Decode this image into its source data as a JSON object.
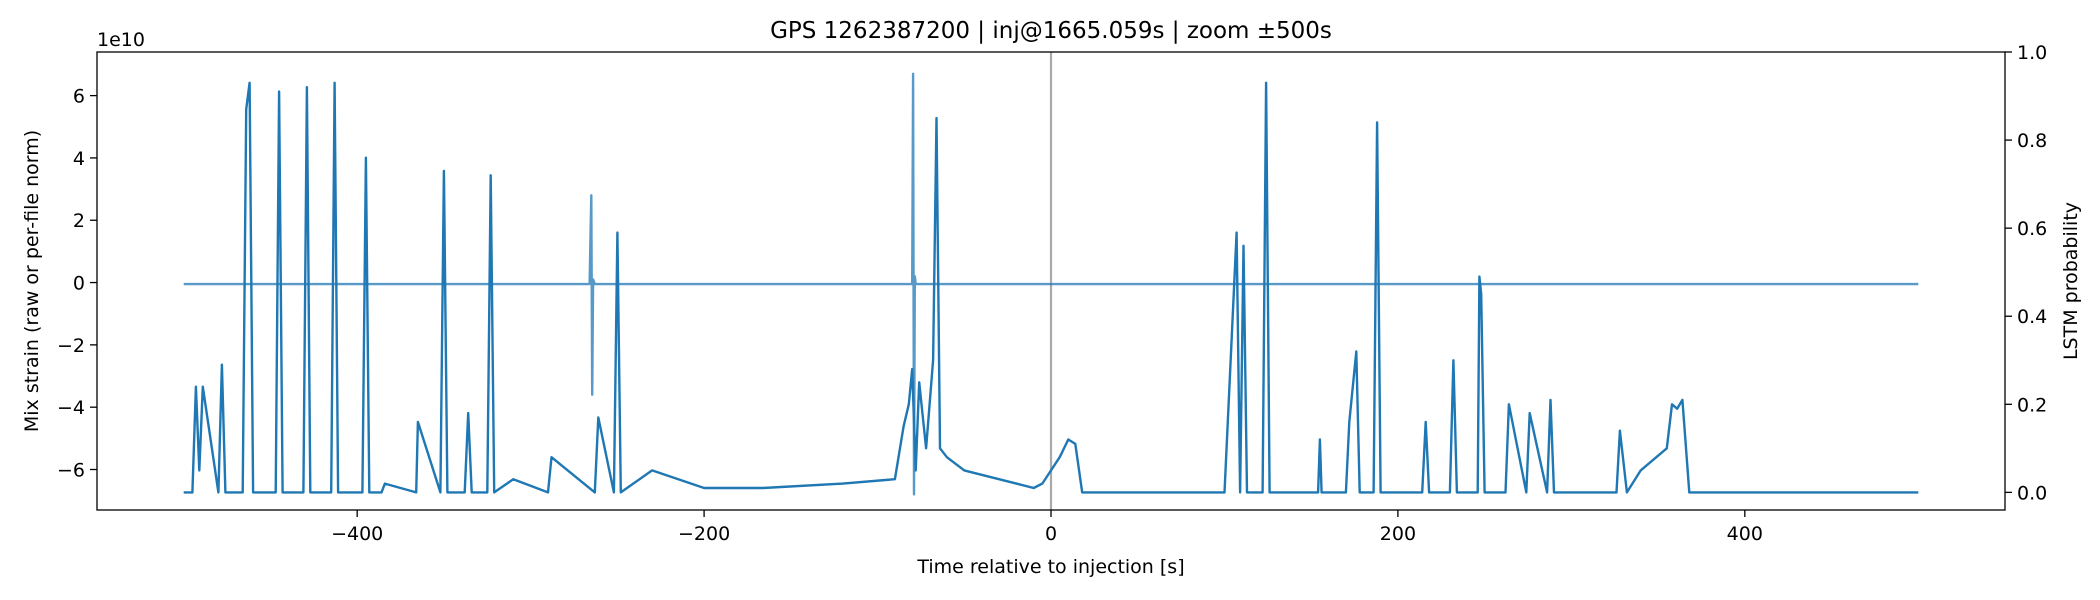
{
  "chart_data": {
    "type": "line",
    "title": "GPS 1262387200 | inj@1665.059s | zoom ±500s",
    "xlabel": "Time relative to injection [s]",
    "ylabel_left": "Mix strain (raw or per-file norm)",
    "ylabel_right": "LSTM probability",
    "y_offset_label": "1e10",
    "xlim": [
      -550,
      550
    ],
    "ylim_left": [
      -7.3,
      7.4
    ],
    "ylim_right": [
      -0.04,
      1.0
    ],
    "x_ticks": [
      -400,
      -200,
      0,
      200,
      400
    ],
    "x_tick_labels": [
      "−400",
      "−200",
      "0",
      "200",
      "400"
    ],
    "y_left_ticks": [
      -6,
      -4,
      -2,
      0,
      2,
      4,
      6
    ],
    "y_left_tick_labels": [
      "−6",
      "−4",
      "−2",
      "0",
      "2",
      "4",
      "6"
    ],
    "y_right_ticks": [
      0.0,
      0.2,
      0.4,
      0.6,
      0.8,
      1.0
    ],
    "y_right_tick_labels": [
      "0.0",
      "0.2",
      "0.4",
      "0.6",
      "0.8",
      "1.0"
    ],
    "injection_marker_x": 0,
    "colors": {
      "series": "#1f77b4",
      "marker": "#aaaaaa"
    },
    "series": [
      {
        "axis": "left",
        "x": [
          -500,
          -266,
          -265,
          -264.5,
          -264,
          -263,
          -80,
          -79.5,
          -79,
          -78.5,
          -78,
          500
        ],
        "y": [
          -0.05,
          -0.05,
          2.8,
          -3.6,
          0.1,
          -0.05,
          -0.05,
          6.7,
          -6.8,
          0.2,
          -0.05,
          -0.05
        ]
      },
      {
        "axis": "right",
        "x": [
          -500,
          -495,
          -493,
          -491,
          -489,
          -480,
          -478,
          -476,
          -466,
          -464,
          -462,
          -460,
          -447,
          -445,
          -443,
          -431,
          -429,
          -427,
          -415,
          -413,
          -411,
          -397,
          -395,
          -393,
          -386,
          -384,
          -366,
          -365,
          -352,
          -350,
          -348,
          -338,
          -336,
          -334,
          -325,
          -323,
          -321,
          -310,
          -290,
          -288,
          -263,
          -261,
          -252,
          -250,
          -248,
          -230,
          -200,
          -166,
          -120,
          -90,
          -85,
          -82,
          -80,
          -78,
          -76,
          -72,
          -68,
          -66,
          -64,
          -60,
          -50,
          -40,
          -30,
          -20,
          -10,
          -5,
          0,
          5,
          10,
          14,
          18,
          100,
          107,
          109,
          111,
          113,
          122,
          124,
          126,
          140,
          154,
          155,
          156,
          170,
          172,
          176,
          178,
          186,
          188,
          190,
          214,
          216,
          218,
          230,
          232,
          234,
          246,
          247,
          248,
          250,
          262,
          264,
          274,
          276,
          286,
          288,
          290,
          326,
          328,
          332,
          340,
          355,
          358,
          361,
          364,
          368,
          500
        ],
        "y": [
          0.0,
          0.0,
          0.24,
          0.05,
          0.24,
          0.0,
          0.29,
          0.0,
          0.0,
          0.87,
          0.93,
          0.0,
          0.0,
          0.91,
          0.0,
          0.0,
          0.92,
          0.0,
          0.0,
          0.93,
          0.0,
          0.0,
          0.76,
          0.0,
          0.0,
          0.02,
          0.0,
          0.16,
          0.0,
          0.73,
          0.0,
          0.0,
          0.18,
          0.0,
          0.0,
          0.72,
          0.0,
          0.03,
          0.0,
          0.08,
          0.0,
          0.17,
          0.0,
          0.59,
          0.0,
          0.05,
          0.01,
          0.01,
          0.02,
          0.03,
          0.15,
          0.2,
          0.28,
          0.05,
          0.25,
          0.1,
          0.3,
          0.85,
          0.1,
          0.08,
          0.05,
          0.04,
          0.03,
          0.02,
          0.01,
          0.02,
          0.05,
          0.08,
          0.12,
          0.11,
          0.0,
          0.0,
          0.59,
          0.0,
          0.56,
          0.0,
          0.0,
          0.93,
          0.0,
          0.0,
          0.0,
          0.12,
          0.0,
          0.0,
          0.16,
          0.32,
          0.0,
          0.0,
          0.84,
          0.0,
          0.0,
          0.16,
          0.0,
          0.0,
          0.3,
          0.0,
          0.0,
          0.49,
          0.45,
          0.0,
          0.0,
          0.2,
          0.0,
          0.18,
          0.0,
          0.21,
          0.0,
          0.0,
          0.14,
          0.0,
          0.05,
          0.1,
          0.2,
          0.19,
          0.21,
          0.0,
          0.0
        ]
      }
    ]
  }
}
